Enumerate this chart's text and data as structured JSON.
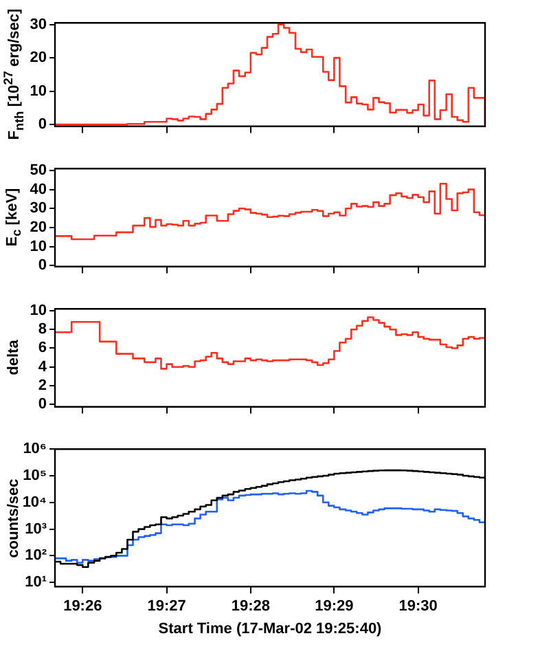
{
  "chart_data": [
    {
      "type": "step",
      "ylabel": "F$_{nth}$ [10$^{27}$ erg/sec]",
      "tick_labels": "y",
      "x": [
        19.4278,
        19.4289,
        19.43,
        19.4311,
        19.4322,
        19.4333,
        19.4344,
        19.4356,
        19.4367,
        19.4378,
        19.4389,
        19.44,
        19.4411,
        19.4422,
        19.4433,
        19.4444,
        19.4456,
        19.4467,
        19.4478,
        19.4489,
        19.45,
        19.4511,
        19.4522,
        19.4533,
        19.4544,
        19.4556,
        19.4567,
        19.4578,
        19.4589,
        19.46,
        19.4611,
        19.4622,
        19.4633,
        19.4644,
        19.4656,
        19.4667,
        19.4678,
        19.4689,
        19.47,
        19.4711,
        19.4722,
        19.4733,
        19.4744,
        19.4756,
        19.4767,
        19.4778,
        19.4789,
        19.48,
        19.4811,
        19.4822,
        19.4833,
        19.4844,
        19.4856,
        19.4867,
        19.4878,
        19.4889,
        19.49,
        19.4911,
        19.4922,
        19.4933,
        19.4944,
        19.4956,
        19.4967,
        19.4978,
        19.4989,
        19.5,
        19.5011,
        19.5022,
        19.5033,
        19.5044,
        19.5056,
        19.5067,
        19.5078,
        19.5089,
        19.51,
        19.5111,
        19.5122,
        19.5133
      ],
      "series": [
        {
          "color": "#ff3020",
          "values": [
            0,
            0,
            0,
            0,
            0,
            0,
            0,
            0,
            0,
            0,
            0,
            0,
            0,
            0.2,
            0.2,
            0.2,
            0.8,
            0.8,
            0.8,
            0.8,
            1.8,
            1.6,
            1.2,
            1.8,
            2.4,
            2.3,
            1.6,
            3.2,
            4.5,
            6.2,
            11,
            12.3,
            16.2,
            14.5,
            15.6,
            21.5,
            21,
            23,
            26.3,
            27.2,
            30,
            29,
            27.5,
            22.7,
            21.7,
            22.5,
            20.3,
            20.3,
            15.8,
            13.3,
            20,
            11.5,
            6.6,
            8.2,
            6.3,
            6,
            4.5,
            8,
            6.7,
            6.4,
            3.6,
            4.4,
            4.4,
            3.5,
            4.3,
            6,
            2.7,
            13.2,
            1.6,
            4.3,
            9.1,
            2.3,
            1.3,
            0.8,
            11,
            8,
            8,
            0
          ]
        }
      ],
      "xlim": [
        19.4278,
        19.5133
      ],
      "xticks": [
        {
          "value": 19.4333,
          "label": null
        },
        {
          "value": 19.45,
          "label": null
        },
        {
          "value": 19.4667,
          "label": null
        },
        {
          "value": 19.4833,
          "label": null
        },
        {
          "value": 19.5,
          "label": null
        }
      ],
      "ylim": [
        -0.5,
        30.5
      ],
      "yticks": [
        0,
        10,
        20,
        30
      ]
    },
    {
      "type": "step",
      "ylabel": "E$_{c}$ [keV]",
      "tick_labels": "y",
      "x": [
        19.4278,
        19.4289,
        19.43,
        19.4311,
        19.4322,
        19.4333,
        19.4344,
        19.4356,
        19.4367,
        19.4378,
        19.4389,
        19.44,
        19.4411,
        19.4422,
        19.4433,
        19.4444,
        19.4456,
        19.4467,
        19.4478,
        19.4489,
        19.45,
        19.4511,
        19.4522,
        19.4533,
        19.4544,
        19.4556,
        19.4567,
        19.4578,
        19.4589,
        19.46,
        19.4611,
        19.4622,
        19.4633,
        19.4644,
        19.4656,
        19.4667,
        19.4678,
        19.4689,
        19.47,
        19.4711,
        19.4722,
        19.4733,
        19.4744,
        19.4756,
        19.4767,
        19.4778,
        19.4789,
        19.48,
        19.4811,
        19.4822,
        19.4833,
        19.4844,
        19.4856,
        19.4867,
        19.4878,
        19.4889,
        19.49,
        19.4911,
        19.4922,
        19.4933,
        19.4944,
        19.4956,
        19.4967,
        19.4978,
        19.4989,
        19.5,
        19.5011,
        19.5022,
        19.5033,
        19.5044,
        19.5056,
        19.5067,
        19.5078,
        19.5089,
        19.51,
        19.5111,
        19.5122,
        19.5133
      ],
      "series": [
        {
          "color": "#ff3020",
          "values": [
            15.5,
            15.5,
            15.5,
            13.8,
            13.8,
            13.8,
            13.8,
            15.7,
            15.7,
            15.7,
            15.7,
            17.5,
            17.5,
            17.5,
            21,
            21,
            25,
            20.3,
            24,
            21,
            21.8,
            21.5,
            21,
            23.5,
            21,
            22,
            22.5,
            26.3,
            26.3,
            23.5,
            23.5,
            27,
            28.8,
            30,
            29.5,
            27.7,
            27.3,
            26.8,
            25.5,
            25.7,
            26.2,
            26,
            27,
            27.8,
            28.3,
            28.3,
            29.3,
            28.7,
            26,
            27.3,
            28,
            26.3,
            30,
            32.5,
            31,
            31.3,
            30.8,
            33.3,
            31.3,
            32.5,
            37,
            38,
            36.3,
            35.5,
            37.2,
            36,
            33.3,
            39,
            27.3,
            43,
            35,
            29,
            38,
            38.5,
            40,
            28,
            26.5,
            25.5
          ]
        }
      ],
      "xlim": [
        19.4278,
        19.5133
      ],
      "xticks": [
        {
          "value": 19.4333,
          "label": null
        },
        {
          "value": 19.45,
          "label": null
        },
        {
          "value": 19.4667,
          "label": null
        },
        {
          "value": 19.4833,
          "label": null
        },
        {
          "value": 19.5,
          "label": null
        }
      ],
      "ylim": [
        -0.5,
        51
      ],
      "yticks": [
        0,
        10,
        20,
        30,
        40,
        50
      ]
    },
    {
      "type": "step",
      "ylabel": "delta",
      "tick_labels": "y",
      "x": [
        19.4278,
        19.4289,
        19.43,
        19.4311,
        19.4322,
        19.4333,
        19.4344,
        19.4356,
        19.4367,
        19.4378,
        19.4389,
        19.44,
        19.4411,
        19.4422,
        19.4433,
        19.4444,
        19.4456,
        19.4467,
        19.4478,
        19.4489,
        19.45,
        19.4511,
        19.4522,
        19.4533,
        19.4544,
        19.4556,
        19.4567,
        19.4578,
        19.4589,
        19.46,
        19.4611,
        19.4622,
        19.4633,
        19.4644,
        19.4656,
        19.4667,
        19.4678,
        19.4689,
        19.47,
        19.4711,
        19.4722,
        19.4733,
        19.4744,
        19.4756,
        19.4767,
        19.4778,
        19.4789,
        19.48,
        19.4811,
        19.4822,
        19.4833,
        19.4844,
        19.4856,
        19.4867,
        19.4878,
        19.4889,
        19.49,
        19.4911,
        19.4922,
        19.4933,
        19.4944,
        19.4956,
        19.4967,
        19.4978,
        19.4989,
        19.5,
        19.5011,
        19.5022,
        19.5033,
        19.5044,
        19.5056,
        19.5067,
        19.5078,
        19.5089,
        19.51,
        19.5111,
        19.5122,
        19.5133
      ],
      "series": [
        {
          "color": "#ff3020",
          "values": [
            7.7,
            7.7,
            7.7,
            8.8,
            8.8,
            8.8,
            8.8,
            8.8,
            6.7,
            6.7,
            6.7,
            5.4,
            5.4,
            5.4,
            4.9,
            4.9,
            4.5,
            4.5,
            4.9,
            3.8,
            4.3,
            4,
            4,
            4.1,
            4,
            4.6,
            4.7,
            5.1,
            5.5,
            4.9,
            4.5,
            4.3,
            4.6,
            4.6,
            4.9,
            4.7,
            4.8,
            4.7,
            4.6,
            4.7,
            4.7,
            4.7,
            4.8,
            4.8,
            4.8,
            4.7,
            4.5,
            4.2,
            4.4,
            4.8,
            5.7,
            6.6,
            7,
            8,
            8.4,
            8.9,
            9.3,
            9,
            8.7,
            8.3,
            8,
            7.4,
            7.5,
            7.4,
            7.7,
            7.2,
            7,
            6.9,
            6.9,
            6.4,
            6.1,
            6,
            6.3,
            7,
            7.2,
            7,
            7.1,
            7.1
          ]
        }
      ],
      "xlim": [
        19.4278,
        19.5133
      ],
      "xticks": [
        {
          "value": 19.4333,
          "label": null
        },
        {
          "value": 19.45,
          "label": null
        },
        {
          "value": 19.4667,
          "label": null
        },
        {
          "value": 19.4833,
          "label": null
        },
        {
          "value": 19.5,
          "label": null
        }
      ],
      "ylim": [
        -0.25,
        10.2
      ],
      "yticks": [
        0,
        2,
        4,
        6,
        8,
        10
      ]
    },
    {
      "type": "step",
      "ylabel": "counts/sec",
      "xlabel": "Start Time (17-Mar-02 19:25:40)",
      "log": "y",
      "x": [
        19.4278,
        19.4289,
        19.43,
        19.4311,
        19.4322,
        19.4333,
        19.4344,
        19.4356,
        19.4367,
        19.4378,
        19.4389,
        19.44,
        19.4411,
        19.4422,
        19.4433,
        19.4444,
        19.4456,
        19.4467,
        19.4478,
        19.4489,
        19.45,
        19.4511,
        19.4522,
        19.4533,
        19.4544,
        19.4556,
        19.4567,
        19.4578,
        19.4589,
        19.46,
        19.4611,
        19.4622,
        19.4633,
        19.4644,
        19.4656,
        19.4667,
        19.4678,
        19.4689,
        19.47,
        19.4711,
        19.4722,
        19.4733,
        19.4744,
        19.4756,
        19.4767,
        19.4778,
        19.4789,
        19.48,
        19.4811,
        19.4822,
        19.4833,
        19.4844,
        19.4856,
        19.4867,
        19.4878,
        19.4889,
        19.49,
        19.4911,
        19.4922,
        19.4933,
        19.4944,
        19.4956,
        19.4967,
        19.4978,
        19.4989,
        19.5,
        19.5011,
        19.5022,
        19.5033,
        19.5044,
        19.5056,
        19.5067,
        19.5078,
        19.5089,
        19.51,
        19.5111,
        19.5122,
        19.5133
      ],
      "series": [
        {
          "color": "#000000",
          "values": [
            60,
            50,
            50,
            50,
            45,
            38,
            55,
            65,
            80,
            90,
            100,
            130,
            180,
            400,
            800,
            1000,
            1200,
            1400,
            1500,
            2800,
            2500,
            2800,
            3200,
            3700,
            4500,
            5500,
            7000,
            8000,
            12000,
            15000,
            18000,
            20000,
            25000,
            28000,
            32000,
            35000,
            38000,
            42000,
            48000,
            52000,
            58000,
            62000,
            68000,
            72000,
            78000,
            85000,
            90000,
            95000,
            100000,
            110000,
            120000,
            125000,
            130000,
            135000,
            140000,
            145000,
            150000,
            155000,
            158000,
            160000,
            160000,
            160000,
            158000,
            155000,
            150000,
            145000,
            140000,
            135000,
            130000,
            125000,
            120000,
            115000,
            110000,
            100000,
            95000,
            90000,
            85000,
            100000
          ]
        },
        {
          "color": "#2060ff",
          "values": [
            80,
            80,
            65,
            70,
            55,
            70,
            65,
            75,
            80,
            90,
            90,
            100,
            100,
            250,
            400,
            500,
            550,
            600,
            700,
            1500,
            1400,
            1500,
            1500,
            1400,
            1600,
            2500,
            3500,
            4500,
            4500,
            13000,
            15000,
            12000,
            15000,
            18000,
            19000,
            20000,
            20000,
            21000,
            21000,
            22000,
            20000,
            21000,
            22000,
            21000,
            22000,
            27000,
            25000,
            18000,
            10000,
            7500,
            6500,
            5500,
            5000,
            4500,
            4000,
            3500,
            4200,
            5000,
            5500,
            6000,
            6000,
            6000,
            5800,
            5800,
            5500,
            5500,
            5000,
            4500,
            5500,
            5200,
            5000,
            4800,
            4000,
            3000,
            2500,
            2200,
            1800,
            1800
          ]
        }
      ],
      "xlim": [
        19.4278,
        19.5133
      ],
      "xticks": [
        {
          "value": 19.4333,
          "label": "19:26"
        },
        {
          "value": 19.45,
          "label": "19:27"
        },
        {
          "value": 19.4667,
          "label": "19:28"
        },
        {
          "value": 19.4833,
          "label": "19:29"
        },
        {
          "value": 19.5,
          "label": "19:30"
        }
      ],
      "ylim": [
        7,
        1000000
      ],
      "yticks": [
        {
          "value": 10,
          "label": "10¹"
        },
        {
          "value": 100,
          "label": "10²"
        },
        {
          "value": 1000,
          "label": "10³"
        },
        {
          "value": 10000,
          "label": "10⁴"
        },
        {
          "value": 100000,
          "label": "10⁵"
        },
        {
          "value": 1000000,
          "label": "10⁶"
        }
      ]
    }
  ]
}
